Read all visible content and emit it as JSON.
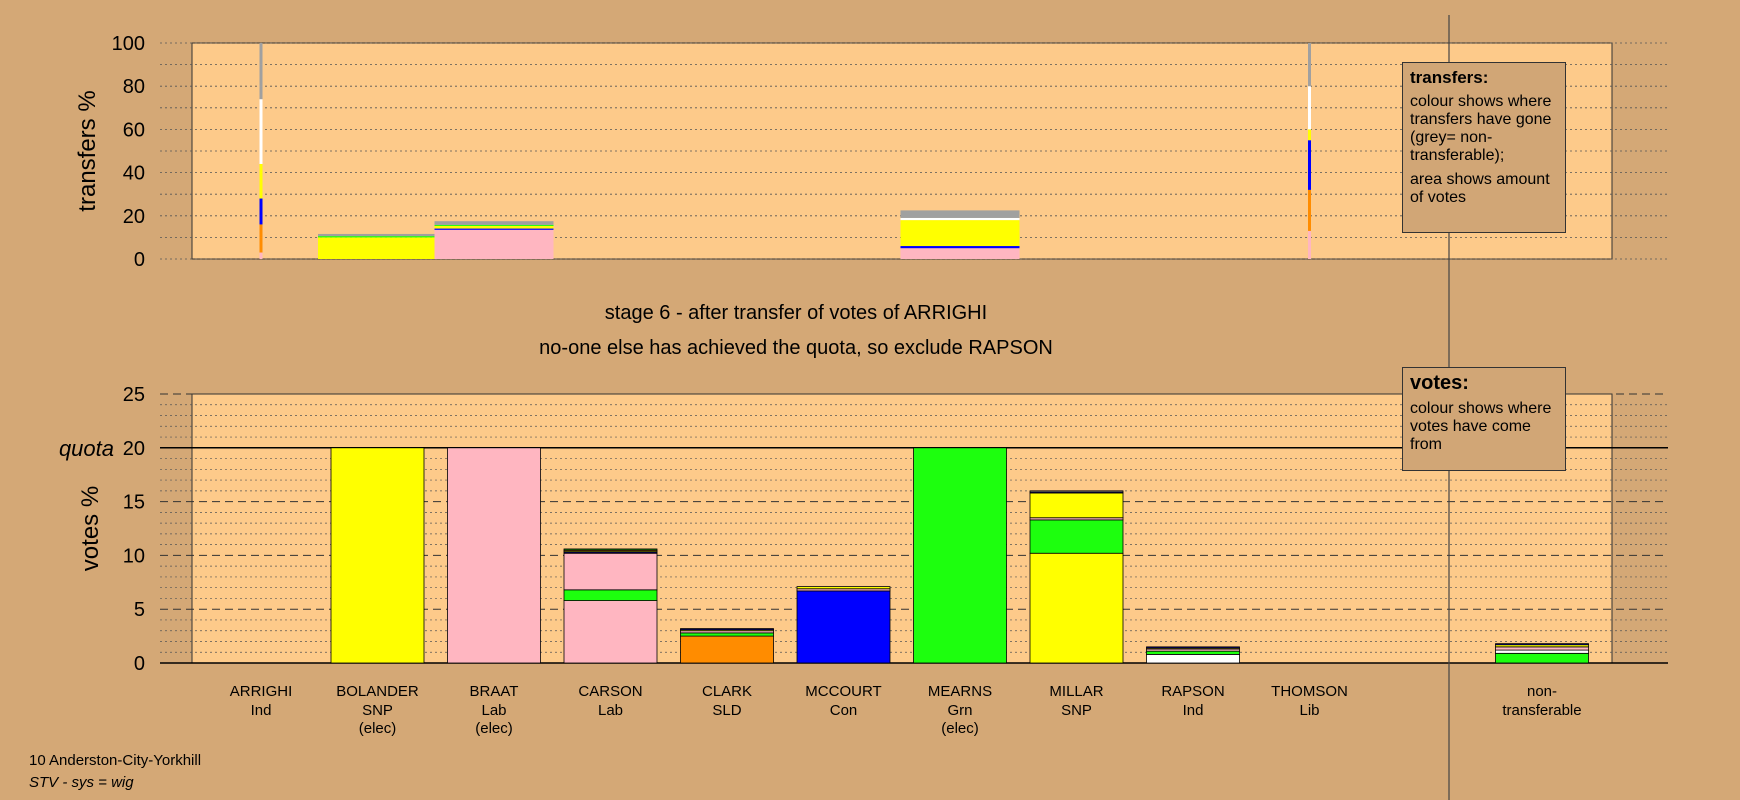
{
  "stage_title": "stage 6 - after transfer of votes of ARRIGHI",
  "stage_subtitle": "no-one else has achieved the quota, so exclude RAPSON",
  "transfers_legend": {
    "title": "transfers:",
    "text1": "colour shows where transfers have gone (grey= non-transferable);",
    "text2": "area shows amount of votes"
  },
  "votes_legend": {
    "title": "votes:",
    "text": "colour shows where votes have come from"
  },
  "footer": {
    "ward": "10 Anderston-City-Yorkhill",
    "system": "STV - sys = wig"
  },
  "colors": {
    "background": "#d4a876",
    "plot": "#fdca8a",
    "SNP": "#ffff00",
    "Lab": "#ffb6c1",
    "Grn": "#1dff0e",
    "Con": "#0000ff",
    "SLD": "#ff8c00",
    "Ind": "#ffffff",
    "nontransferable": "#a0a0a0"
  },
  "chart_data": [
    {
      "type": "bar",
      "name": "transfers",
      "ylabel": "transfers %",
      "ylim": [
        0,
        100
      ],
      "yticks": [
        0,
        20,
        40,
        60,
        80,
        100
      ],
      "bars": [
        {
          "candidate": "ARRIGHI",
          "width_share": 0.02,
          "segments": [
            {
              "party": "Lab",
              "value": 3
            },
            {
              "party": "SLD",
              "value": 13
            },
            {
              "party": "Con",
              "value": 12
            },
            {
              "party": "SNP",
              "value": 16
            },
            {
              "party": "Ind",
              "value": 30
            },
            {
              "party": "nontransferable",
              "value": 26
            }
          ]
        },
        {
          "candidate": "BOLANDER",
          "width_share": 1,
          "segments": [
            {
              "party": "SNP",
              "value": 10
            },
            {
              "party": "Grn",
              "value": 0.6
            },
            {
              "party": "nontransferable",
              "value": 1
            }
          ]
        },
        {
          "candidate": "BRAAT",
          "width_share": 1,
          "segments": [
            {
              "party": "Lab",
              "value": 13.5
            },
            {
              "party": "Con",
              "value": 0.6
            },
            {
              "party": "SNP",
              "value": 1.2
            },
            {
              "party": "Grn",
              "value": 0.5
            },
            {
              "party": "nontransferable",
              "value": 1.7
            }
          ]
        },
        {
          "candidate": "MEARNS",
          "width_share": 1,
          "segments": [
            {
              "party": "Lab",
              "value": 5
            },
            {
              "party": "Con",
              "value": 1
            },
            {
              "party": "SNP",
              "value": 12
            },
            {
              "party": "Ind",
              "value": 1
            },
            {
              "party": "nontransferable",
              "value": 3.5
            }
          ]
        },
        {
          "candidate": "THOMSON",
          "width_share": 0.02,
          "segments": [
            {
              "party": "Lab",
              "value": 13
            },
            {
              "party": "SLD",
              "value": 19
            },
            {
              "party": "Con",
              "value": 23
            },
            {
              "party": "SNP",
              "value": 5
            },
            {
              "party": "Ind",
              "value": 20
            },
            {
              "party": "nontransferable",
              "value": 20
            }
          ]
        }
      ]
    },
    {
      "type": "bar",
      "name": "votes",
      "ylabel": "votes %",
      "ylim": [
        0,
        25
      ],
      "yticks": [
        0,
        5,
        10,
        15,
        20,
        25
      ],
      "quota": 20,
      "quota_label": "quota",
      "candidates": [
        {
          "name": "ARRIGHI",
          "party": "Ind",
          "note": "",
          "segments": []
        },
        {
          "name": "BOLANDER",
          "party": "SNP",
          "note": "(elec)",
          "segments": [
            {
              "party": "SNP",
              "value": 20
            }
          ]
        },
        {
          "name": "BRAAT",
          "party": "Lab",
          "note": "(elec)",
          "segments": [
            {
              "party": "Lab",
              "value": 20
            }
          ]
        },
        {
          "name": "CARSON",
          "party": "Lab",
          "note": "",
          "segments": [
            {
              "party": "Lab",
              "value": 5.8
            },
            {
              "party": "Grn",
              "value": 1.0
            },
            {
              "party": "Lab",
              "value": 3.4
            },
            {
              "party": "Con",
              "value": 0.1
            },
            {
              "party": "SNP",
              "value": 0.1
            },
            {
              "party": "SLD",
              "value": 0.1
            },
            {
              "party": "Grn",
              "value": 0.1
            }
          ]
        },
        {
          "name": "CLARK",
          "party": "SLD",
          "note": "",
          "segments": [
            {
              "party": "SLD",
              "value": 2.5
            },
            {
              "party": "Grn",
              "value": 0.3
            },
            {
              "party": "Lab",
              "value": 0.2
            },
            {
              "party": "SNP",
              "value": 0.1
            },
            {
              "party": "Con",
              "value": 0.1
            }
          ]
        },
        {
          "name": "MCCOURT",
          "party": "Con",
          "note": "",
          "segments": [
            {
              "party": "Con",
              "value": 6.7
            },
            {
              "party": "Lab",
              "value": 0.2
            },
            {
              "party": "SNP",
              "value": 0.2
            }
          ]
        },
        {
          "name": "MEARNS",
          "party": "Grn",
          "note": "(elec)",
          "segments": [
            {
              "party": "Grn",
              "value": 20
            }
          ]
        },
        {
          "name": "MILLAR",
          "party": "SNP",
          "note": "",
          "segments": [
            {
              "party": "SNP",
              "value": 10.2
            },
            {
              "party": "Grn",
              "value": 3.1
            },
            {
              "party": "Lab",
              "value": 0.2
            },
            {
              "party": "SNP",
              "value": 2.3
            },
            {
              "party": "Con",
              "value": 0.1
            },
            {
              "party": "Ind",
              "value": 0.1
            }
          ]
        },
        {
          "name": "RAPSON",
          "party": "Ind",
          "note": "",
          "segments": [
            {
              "party": "Ind",
              "value": 0.8
            },
            {
              "party": "Grn",
              "value": 0.3
            },
            {
              "party": "Lab",
              "value": 0.2
            },
            {
              "party": "SNP",
              "value": 0.1
            },
            {
              "party": "Con",
              "value": 0.1
            }
          ]
        },
        {
          "name": "THOMSON",
          "party": "Lib",
          "note": "",
          "segments": []
        }
      ],
      "nontransferable": {
        "label1": "non-",
        "label2": "transferable",
        "segments": [
          {
            "party": "Grn",
            "value": 0.9
          },
          {
            "party": "Ind",
            "value": 0.3
          },
          {
            "party": "Lab",
            "value": 0.3
          },
          {
            "party": "SNP",
            "value": 0.2
          },
          {
            "party": "Con",
            "value": 0.1
          }
        ]
      }
    }
  ]
}
